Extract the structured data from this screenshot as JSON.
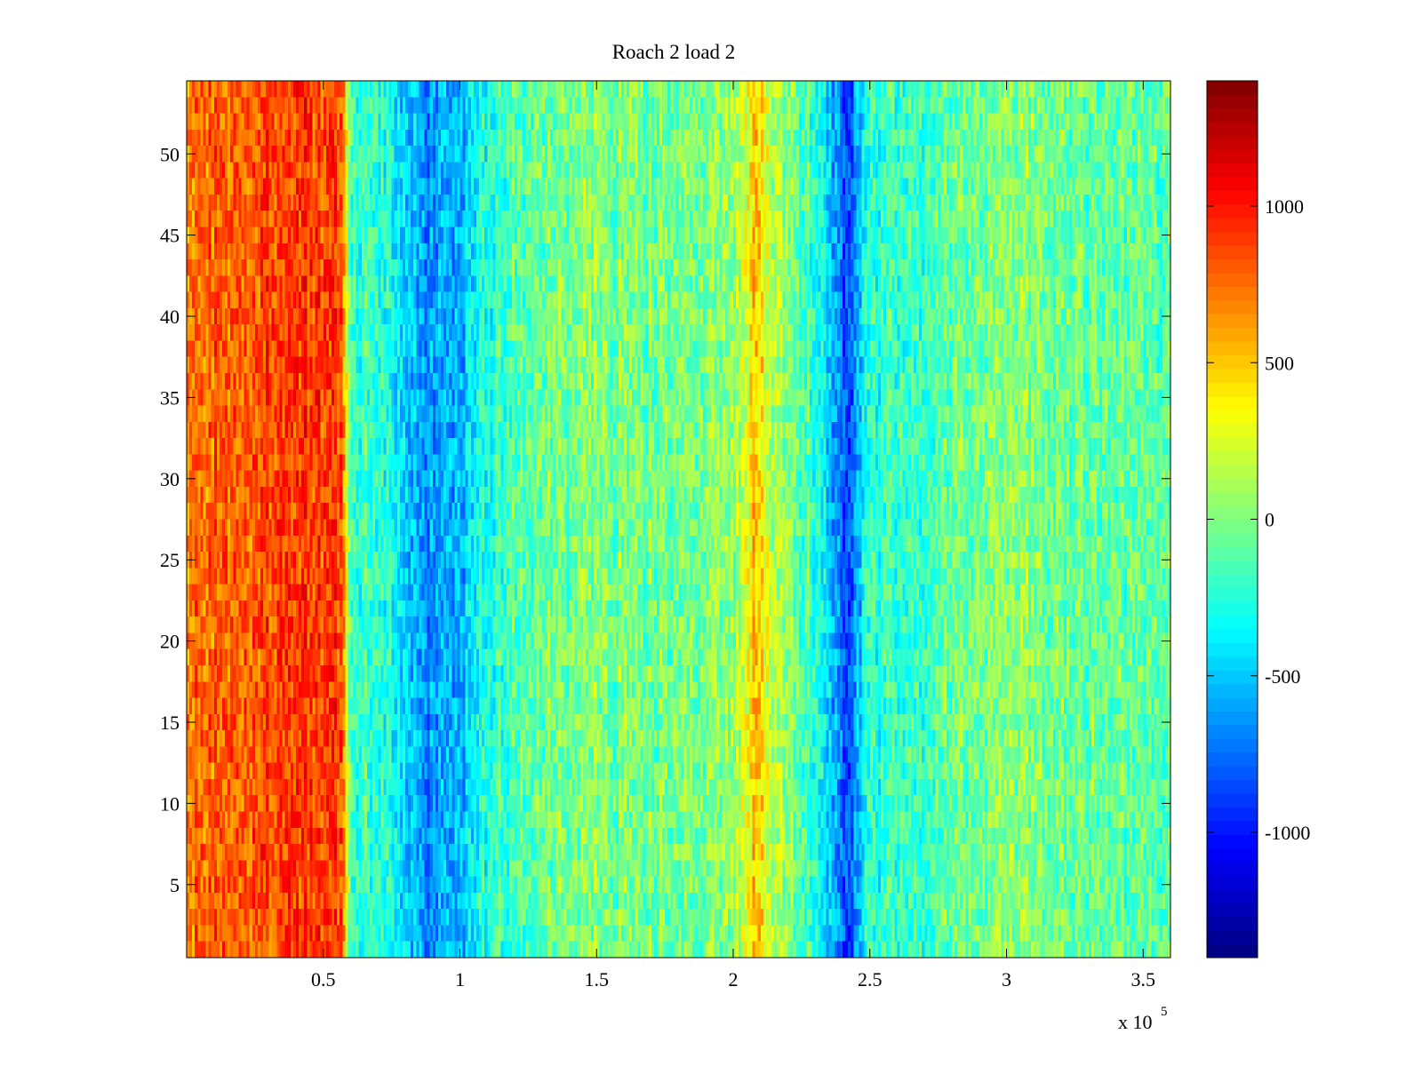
{
  "chart_data": {
    "type": "heatmap",
    "title": "Roach 2 load 2",
    "xlabel": "",
    "ylabel": "",
    "x_multiplier_label": {
      "base": "x 10",
      "exponent": "5"
    },
    "xlim": [
      0,
      3.6
    ],
    "ylim": [
      0.5,
      54.5
    ],
    "x_ticks": [
      0.5,
      1,
      1.5,
      2,
      2.5,
      3,
      3.5
    ],
    "x_tick_labels": [
      "0.5",
      "1",
      "1.5",
      "2",
      "2.5",
      "3",
      "3.5"
    ],
    "y_ticks": [
      5,
      10,
      15,
      20,
      25,
      30,
      35,
      40,
      45,
      50
    ],
    "y_tick_labels": [
      "5",
      "10",
      "15",
      "20",
      "25",
      "30",
      "35",
      "40",
      "45",
      "50"
    ],
    "rows": 54,
    "colormap": "jet",
    "colorbar": {
      "clim": [
        -1400,
        1400
      ],
      "ticks": [
        -1000,
        -500,
        0,
        500,
        1000
      ],
      "tick_labels": [
        "-1000",
        "-500",
        "0",
        "500",
        "1000"
      ]
    },
    "column_profile": {
      "description_units": "x in 10^5, value in data units",
      "x": [
        0.0,
        0.3,
        0.45,
        0.57,
        0.6,
        0.75,
        0.88,
        1.0,
        1.05,
        1.2,
        1.5,
        1.75,
        2.0,
        2.08,
        2.15,
        2.3,
        2.42,
        2.5,
        2.7,
        3.0,
        3.2,
        3.6
      ],
      "mean": [
        750,
        850,
        900,
        850,
        -150,
        -300,
        -650,
        -600,
        -350,
        -100,
        0,
        -50,
        0,
        500,
        150,
        -200,
        -850,
        -250,
        -150,
        50,
        -50,
        -100
      ]
    },
    "noise_amplitude": 230
  }
}
